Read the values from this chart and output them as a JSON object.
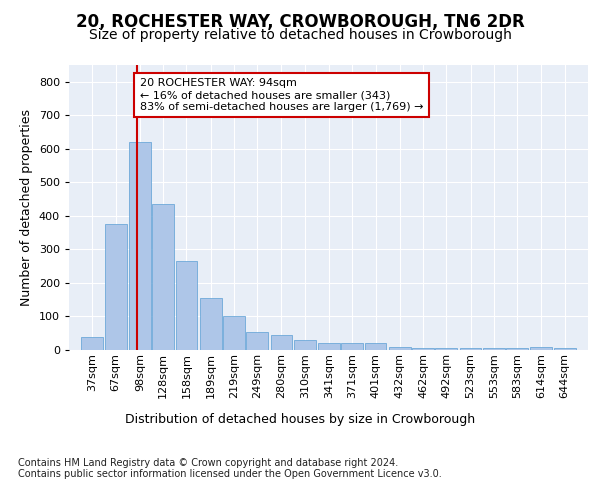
{
  "title": "20, ROCHESTER WAY, CROWBOROUGH, TN6 2DR",
  "subtitle": "Size of property relative to detached houses in Crowborough",
  "xlabel": "Distribution of detached houses by size in Crowborough",
  "ylabel": "Number of detached properties",
  "bar_color": "#aec6e8",
  "bar_edge_color": "#5a9fd4",
  "background_color": "#e8eef7",
  "annotation_line_color": "#cc0000",
  "annotation_box_color": "#cc0000",
  "annotation_text": "20 ROCHESTER WAY: 94sqm\n← 16% of detached houses are smaller (343)\n83% of semi-detached houses are larger (1,769) →",
  "property_size": 94,
  "footer_text": "Contains HM Land Registry data © Crown copyright and database right 2024.\nContains public sector information licensed under the Open Government Licence v3.0.",
  "bins": [
    37,
    67,
    98,
    128,
    158,
    189,
    219,
    249,
    280,
    310,
    341,
    371,
    401,
    432,
    462,
    492,
    523,
    553,
    583,
    614,
    644
  ],
  "values": [
    40,
    375,
    620,
    435,
    265,
    155,
    100,
    55,
    45,
    30,
    20,
    20,
    20,
    10,
    5,
    5,
    5,
    5,
    5,
    10,
    5
  ],
  "ylim": [
    0,
    850
  ],
  "yticks": [
    0,
    100,
    200,
    300,
    400,
    500,
    600,
    700,
    800
  ],
  "grid_color": "#ffffff",
  "title_fontsize": 12,
  "subtitle_fontsize": 10,
  "tick_fontsize": 8,
  "ylabel_fontsize": 9,
  "xlabel_fontsize": 9,
  "footer_fontsize": 7,
  "annotation_fontsize": 8
}
